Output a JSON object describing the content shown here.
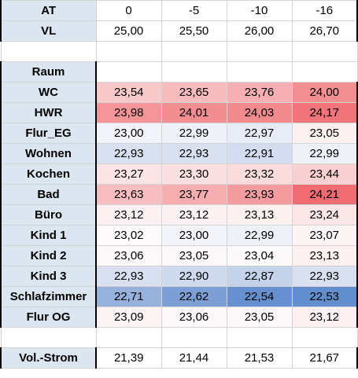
{
  "header": {
    "at_label": "AT",
    "at_values": [
      "0",
      "-5",
      "-10",
      "-16"
    ],
    "vl_label": "VL",
    "vl_values": [
      "25,00",
      "25,50",
      "26,00",
      "26,70"
    ]
  },
  "room_header": "Raum",
  "rooms": [
    {
      "name": "WC",
      "values": [
        "23,54",
        "23,65",
        "23,76",
        "24,00"
      ],
      "colors": [
        "#f8c9cb",
        "#f7bbbe",
        "#f6b0b3",
        "#f28f93"
      ]
    },
    {
      "name": "HWR",
      "values": [
        "23,98",
        "24,01",
        "24,03",
        "24,17"
      ],
      "colors": [
        "#f39599",
        "#f28e92",
        "#f28a8e",
        "#f07479"
      ]
    },
    {
      "name": "Flur_EG",
      "values": [
        "23,00",
        "22,99",
        "22,97",
        "23,05"
      ],
      "colors": [
        "#f2f4fa",
        "#eef1f8",
        "#e8ecf6",
        "#fdf0f1"
      ]
    },
    {
      "name": "Wohnen",
      "values": [
        "22,93",
        "22,93",
        "22,91",
        "22,99"
      ],
      "colors": [
        "#d9e1f1",
        "#d9e1f1",
        "#d3ddef",
        "#eef1f8"
      ]
    },
    {
      "name": "Kochen",
      "values": [
        "23,27",
        "23,30",
        "23,32",
        "23,44"
      ],
      "colors": [
        "#fbe4e5",
        "#fbe0e1",
        "#fadcdd",
        "#f9d0d2"
      ]
    },
    {
      "name": "Bad",
      "values": [
        "23,63",
        "23,77",
        "23,93",
        "24,21"
      ],
      "colors": [
        "#f7bdc0",
        "#f6aeb1",
        "#f49ca0",
        "#ef6d72"
      ]
    },
    {
      "name": "Büro",
      "values": [
        "23,12",
        "23,12",
        "23,13",
        "23,24"
      ],
      "colors": [
        "#fcf1f2",
        "#fcf1f2",
        "#fcf0f1",
        "#fbe6e7"
      ]
    },
    {
      "name": "Kind 1",
      "values": [
        "23,02",
        "23,00",
        "22,99",
        "23,07"
      ],
      "colors": [
        "#fcfafb",
        "#f2f4fa",
        "#eef1f8",
        "#fcf5f6"
      ]
    },
    {
      "name": "Kind 2",
      "values": [
        "23,06",
        "23,05",
        "23,04",
        "23,13"
      ],
      "colors": [
        "#fcf7f8",
        "#fcf8f9",
        "#fcf9fa",
        "#fcf0f1"
      ]
    },
    {
      "name": "Kind 3",
      "values": [
        "22,93",
        "22,90",
        "22,87",
        "22,93"
      ],
      "colors": [
        "#d9e1f1",
        "#cfdaee",
        "#c4d2ea",
        "#d9e1f1"
      ]
    },
    {
      "name": "Schlafzimmer",
      "values": [
        "22,71",
        "22,62",
        "22,54",
        "22,53"
      ],
      "colors": [
        "#97b1dd",
        "#7d9fd5",
        "#6690cf",
        "#638ece"
      ]
    },
    {
      "name": "Flur OG",
      "values": [
        "23,09",
        "23,06",
        "23,05",
        "23,12"
      ],
      "colors": [
        "#fcf4f5",
        "#fcf7f8",
        "#fcf8f9",
        "#fcf1f2"
      ]
    }
  ],
  "footer": {
    "label": "Vol.-Strom",
    "values": [
      "21,39",
      "21,44",
      "21,53",
      "21,67"
    ]
  }
}
